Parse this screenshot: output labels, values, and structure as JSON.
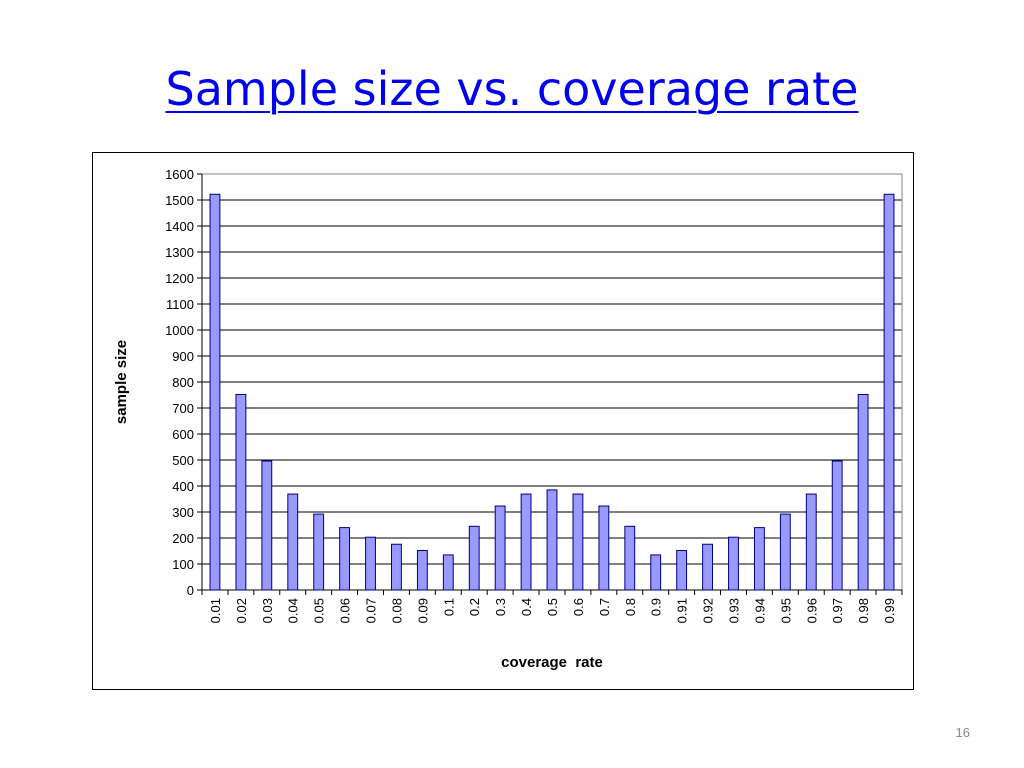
{
  "slide": {
    "title": "Sample size vs. coverage rate",
    "number": "16"
  },
  "colors": {
    "bar_fill": "#9999ff",
    "bar_stroke": "#000080",
    "title": "#0000ee"
  },
  "chart_data": {
    "type": "bar",
    "title": "",
    "xlabel": "coverage  rate",
    "ylabel": "sample  size",
    "ylim": [
      0,
      1600
    ],
    "yticks": [
      0,
      100,
      200,
      300,
      400,
      500,
      600,
      700,
      800,
      900,
      1000,
      1100,
      1200,
      1300,
      1400,
      1500,
      1600
    ],
    "grid": true,
    "legend": "none",
    "categories": [
      "0.01",
      "0.02",
      "0.03",
      "0.04",
      "0.05",
      "0.06",
      "0.07",
      "0.08",
      "0.09",
      "0.1",
      "0.2",
      "0.3",
      "0.4",
      "0.5",
      "0.6",
      "0.7",
      "0.8",
      "0.9",
      "0.91",
      "0.92",
      "0.93",
      "0.94",
      "0.95",
      "0.96",
      "0.97",
      "0.98",
      "0.99"
    ],
    "values": [
      1522,
      752,
      496,
      369,
      292,
      240,
      203,
      176,
      152,
      135,
      245,
      323,
      369,
      385,
      369,
      323,
      245,
      135,
      152,
      176,
      203,
      240,
      292,
      369,
      496,
      752,
      1522
    ]
  }
}
